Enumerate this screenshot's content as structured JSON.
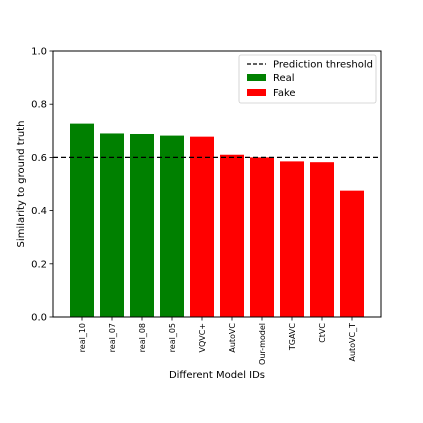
{
  "chart_data": {
    "type": "bar",
    "categories": [
      "real_10",
      "real_07",
      "real_08",
      "real_05",
      "VQVC+",
      "AutoVC",
      "Our-model",
      "TGAVC",
      "CtVC",
      "AutoVC_T"
    ],
    "values": [
      0.727,
      0.69,
      0.688,
      0.682,
      0.678,
      0.61,
      0.6,
      0.585,
      0.582,
      0.475
    ],
    "bar_groups": [
      "Real",
      "Real",
      "Real",
      "Real",
      "Fake",
      "Fake",
      "Fake",
      "Fake",
      "Fake",
      "Fake"
    ],
    "group_colors": {
      "Real": "#008000",
      "Fake": "#ff0000"
    },
    "threshold": 0.6,
    "xlabel": "Different Model IDs",
    "ylabel": "Similarity to ground truth",
    "ylim": [
      0.0,
      1.0
    ],
    "yticks": [
      "0.0",
      "0.2",
      "0.4",
      "0.6",
      "0.8",
      "1.0"
    ],
    "grid": false,
    "legend": {
      "placement": "top-right",
      "entries": [
        "Prediction threshold",
        "Real",
        "Fake"
      ]
    }
  }
}
